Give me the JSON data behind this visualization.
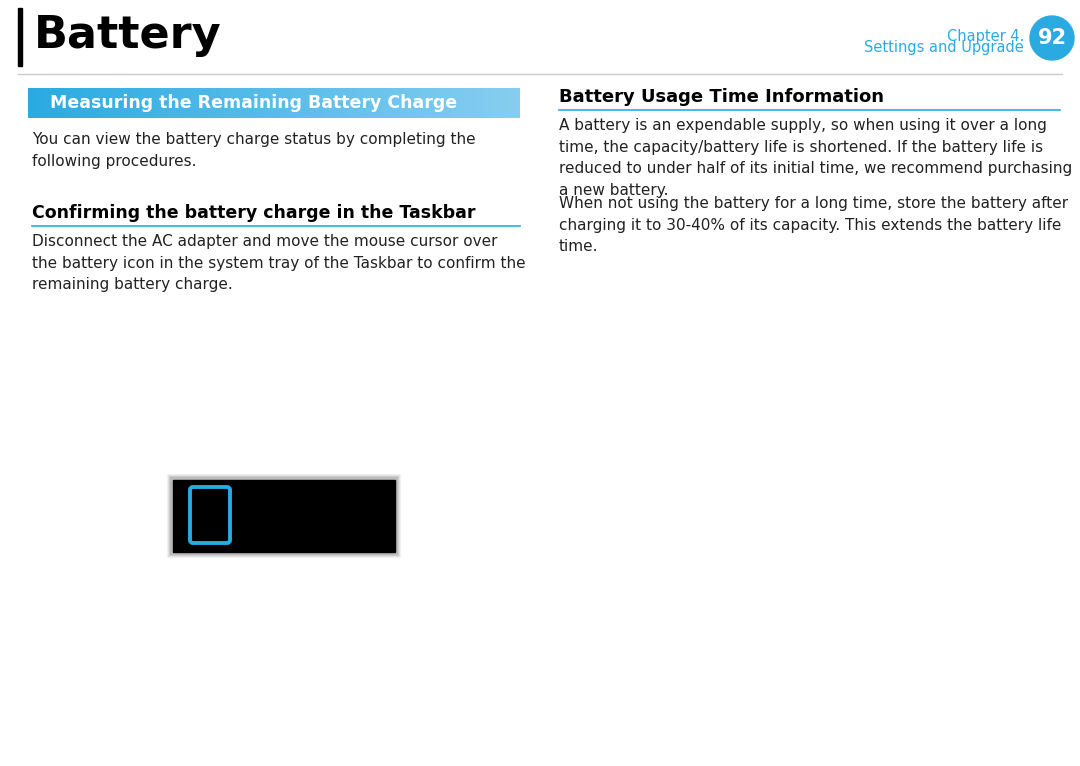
{
  "page_bg": "#ffffff",
  "title": "Battery",
  "title_fontsize": 32,
  "title_color": "#000000",
  "chapter_label": "Chapter 4.",
  "chapter_sublabel": "Settings and Upgrade",
  "chapter_num": "92",
  "chapter_color": "#29abe2",
  "chapter_fontsize": 10.5,
  "chapter_num_fontsize": 15,
  "section1_title": "  Measuring the Remaining Battery Charge",
  "section1_text_color": "#ffffff",
  "section1_fontsize": 12.5,
  "para1": "You can view the battery charge status by completing the\nfollowing procedures.",
  "para1_fontsize": 11,
  "subsection1_title": "Confirming the battery charge in the Taskbar",
  "subsection1_fontsize": 12.5,
  "subsection1_line_color": "#29abe2",
  "para2": "Disconnect the AC adapter and move the mouse cursor over\nthe battery icon in the system tray of the Taskbar to confirm the\nremaining battery charge.",
  "para2_fontsize": 11,
  "section2_title": "Battery Usage Time Information",
  "section2_fontsize": 13,
  "section2_line_color": "#29abe2",
  "para3": "A battery is an expendable supply, so when using it over a long\ntime, the capacity/battery life is shortened. If the battery life is\nreduced to under half of its initial time, we recommend purchasing\na new battery.",
  "para3_fontsize": 11,
  "para4": "When not using the battery for a long time, store the battery after\ncharging it to 30-40% of its capacity. This extends the battery life\ntime.",
  "para4_fontsize": 11,
  "battery_icon_color": "#29abe2",
  "battery_bg_color": "#000000",
  "text_color": "#222222"
}
